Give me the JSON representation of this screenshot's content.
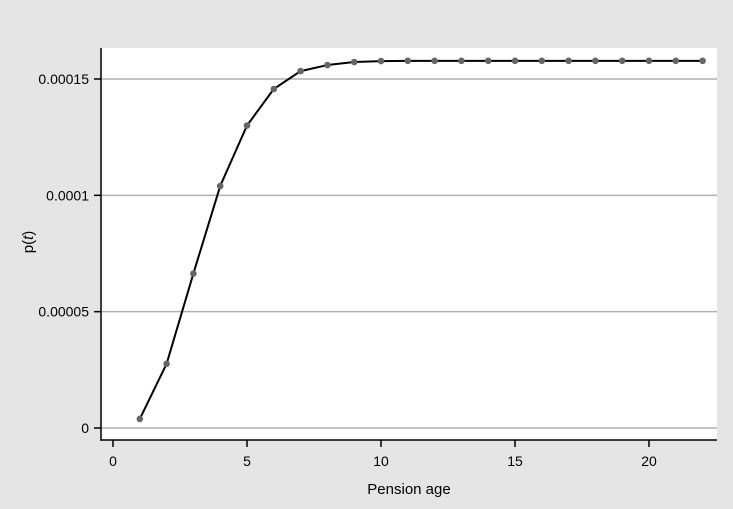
{
  "chart_data": {
    "type": "line",
    "title": "",
    "xlabel": "Pension age",
    "ylabel_prefix": "p(",
    "ylabel_var": "t",
    "ylabel_suffix": ")",
    "xlim": [
      -0.5,
      22.5
    ],
    "ylim": [
      -2e-06,
      0.000163
    ],
    "xticks": [
      0,
      5,
      10,
      15,
      20
    ],
    "xtick_labels": [
      "0",
      "5",
      "10",
      "15",
      "20"
    ],
    "yticks": [
      0,
      5e-05,
      0.0001,
      0.00015
    ],
    "ytick_labels": [
      "0",
      "0.00005",
      "0.0001",
      "0.00015"
    ],
    "grid": "horizontal",
    "markers": true,
    "x": [
      1,
      2,
      3,
      4,
      5,
      6,
      7,
      8,
      9,
      10,
      11,
      12,
      13,
      14,
      15,
      16,
      17,
      18,
      19,
      20,
      21,
      22
    ],
    "y": [
      3.9e-06,
      2.76e-05,
      6.64e-05,
      0.000104,
      0.00013,
      0.0001457,
      0.0001534,
      0.000156,
      0.0001573,
      0.0001577,
      0.0001578,
      0.0001578,
      0.0001578,
      0.0001578,
      0.0001578,
      0.0001578,
      0.0001578,
      0.0001578,
      0.0001578,
      0.0001578,
      0.0001578,
      0.0001578
    ],
    "colors": {
      "background": "#e5e5e5",
      "plot_area": "#ffffff",
      "line": "#000000",
      "marker": "#666666",
      "grid": "#b0b0b0"
    }
  }
}
